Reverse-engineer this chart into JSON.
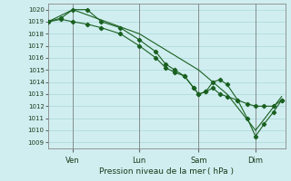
{
  "xlabel": "Pression niveau de la mer ( hPa )",
  "background_color": "#d0eef0",
  "grid_color": "#a8d8d8",
  "line_color": "#1a6020",
  "marker_color": "#1a6020",
  "ylim": [
    1008.5,
    1020.5
  ],
  "yticks": [
    1009,
    1010,
    1011,
    1012,
    1013,
    1014,
    1015,
    1016,
    1017,
    1018,
    1019,
    1020
  ],
  "xlim": [
    0.0,
    1.0
  ],
  "day_positions": [
    0.105,
    0.385,
    0.635,
    0.875
  ],
  "day_labels": [
    "Ven",
    "Lun",
    "Sam",
    "Dim"
  ],
  "series1_x": [
    0.0,
    0.055,
    0.105,
    0.165,
    0.225,
    0.305,
    0.385,
    0.455,
    0.495,
    0.535,
    0.575,
    0.615,
    0.635,
    0.665,
    0.695,
    0.725,
    0.755,
    0.8,
    0.84,
    0.875,
    0.91,
    0.95,
    0.985
  ],
  "series1_y": [
    1019.0,
    1019.3,
    1020.0,
    1020.0,
    1019.0,
    1018.5,
    1017.5,
    1016.5,
    1015.5,
    1015.0,
    1014.5,
    1013.5,
    1013.0,
    1013.2,
    1013.5,
    1013.0,
    1012.8,
    1012.5,
    1012.2,
    1012.0,
    1012.0,
    1012.0,
    1012.5
  ],
  "series2_x": [
    0.0,
    0.055,
    0.105,
    0.165,
    0.225,
    0.305,
    0.385,
    0.455,
    0.495,
    0.535,
    0.575,
    0.615,
    0.635,
    0.665,
    0.695,
    0.725,
    0.755,
    0.8,
    0.84,
    0.875,
    0.91,
    0.95,
    0.985
  ],
  "series2_y": [
    1019.0,
    1019.2,
    1019.0,
    1018.8,
    1018.5,
    1018.0,
    1017.0,
    1016.0,
    1015.2,
    1014.8,
    1014.5,
    1013.5,
    1013.0,
    1013.2,
    1014.0,
    1014.2,
    1013.8,
    1012.5,
    1011.0,
    1009.5,
    1010.5,
    1011.5,
    1012.5
  ],
  "series3_x": [
    0.0,
    0.105,
    0.385,
    0.635,
    0.755,
    0.875,
    0.985
  ],
  "series3_y": [
    1019.0,
    1020.0,
    1018.0,
    1015.0,
    1013.0,
    1010.0,
    1012.8
  ]
}
